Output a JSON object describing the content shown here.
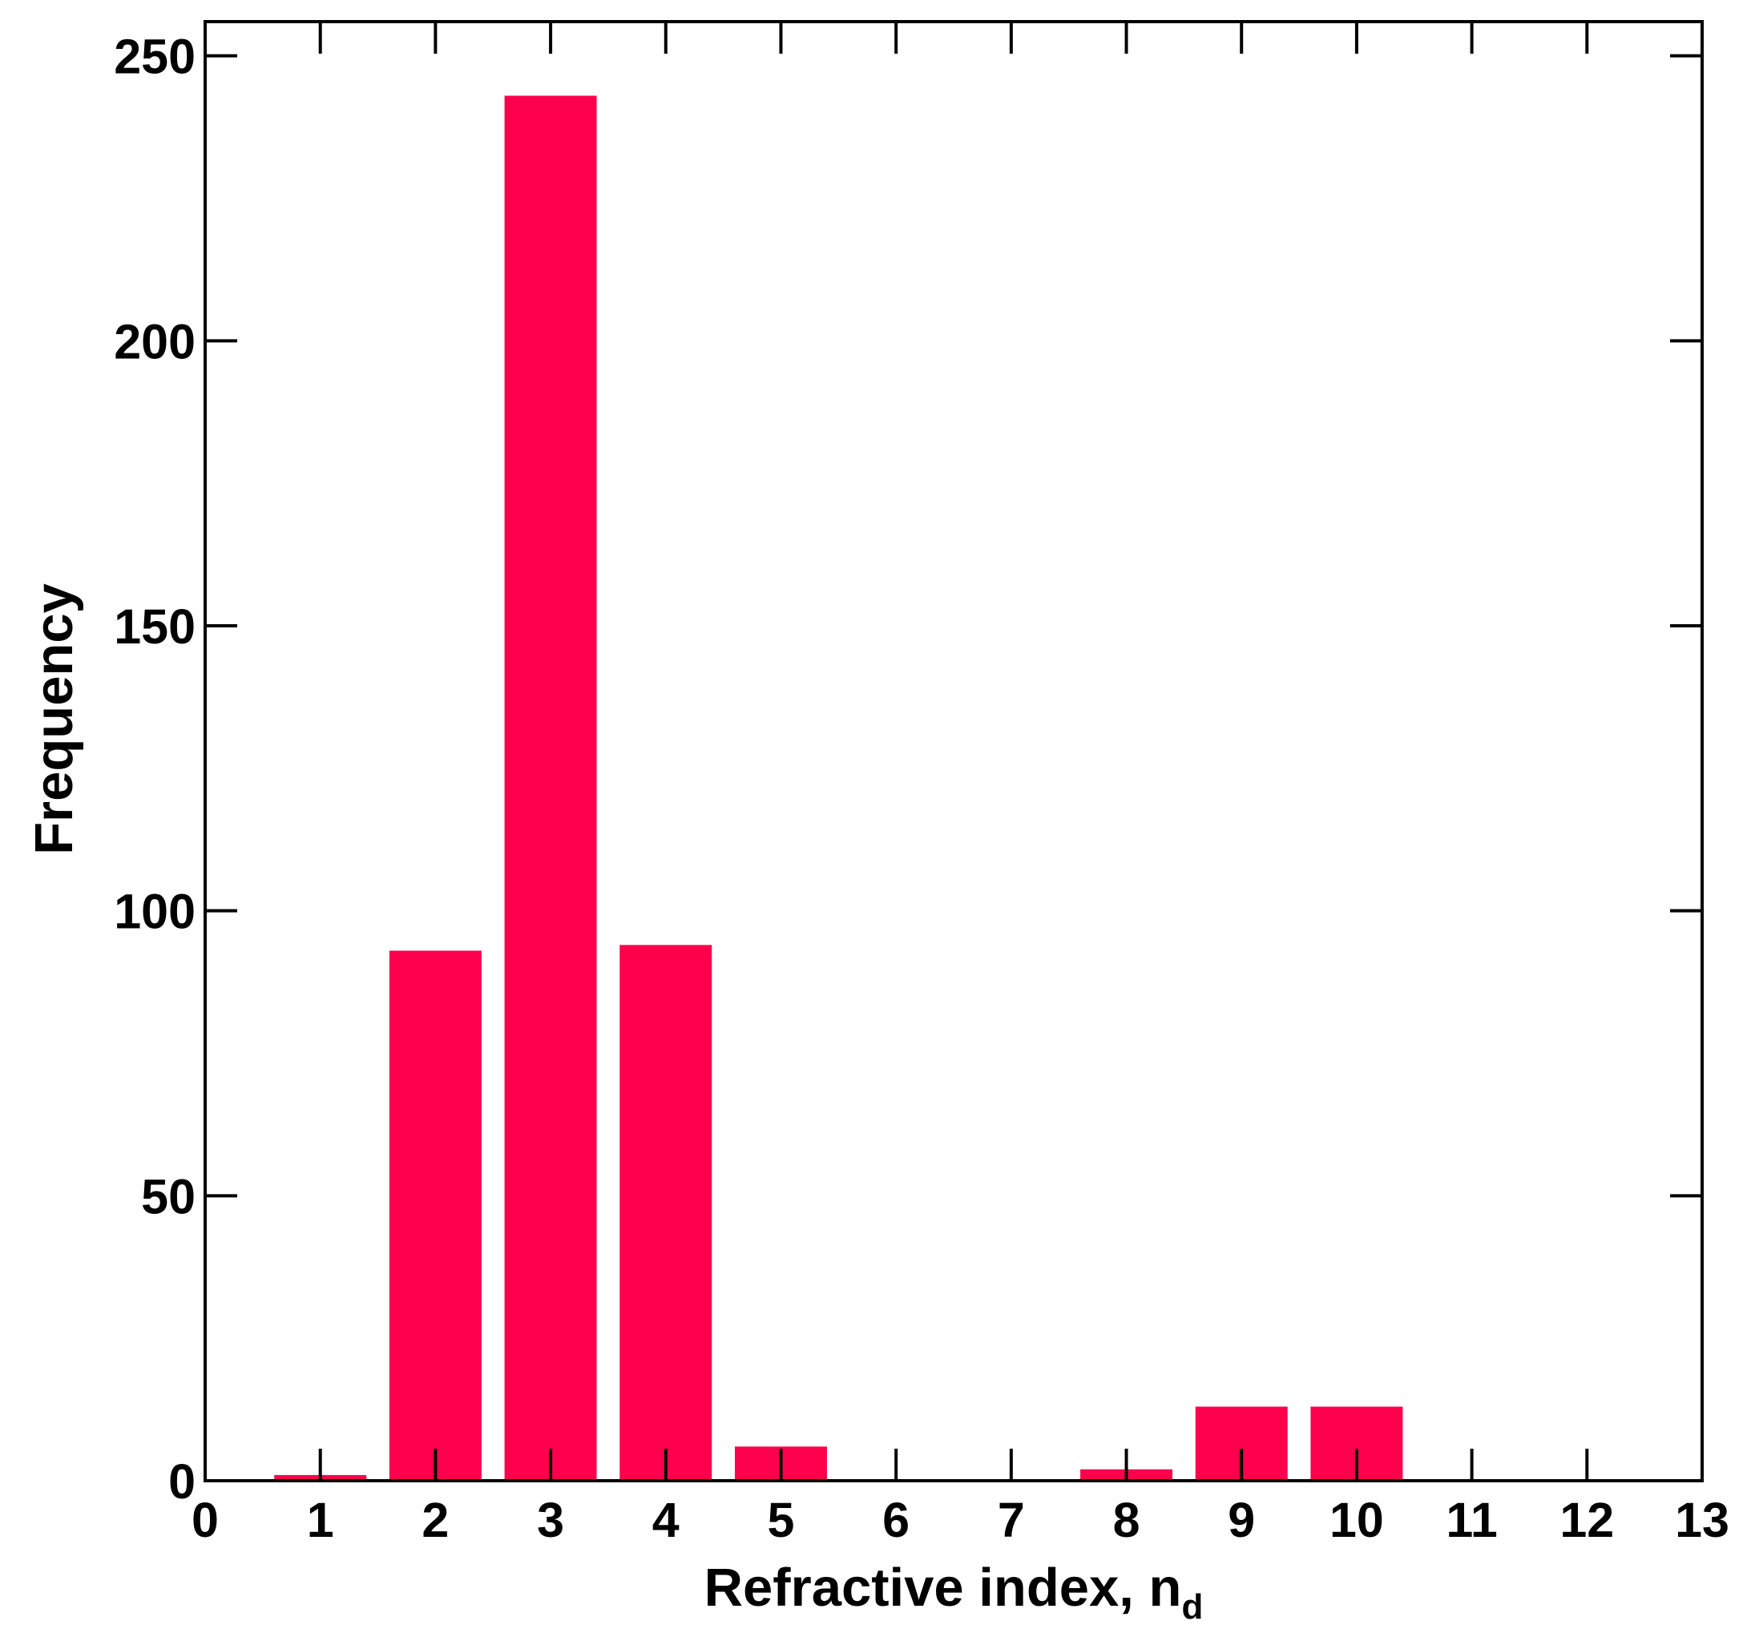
{
  "chart_data": {
    "type": "bar",
    "title": "",
    "xlabel": "Refractive index, n",
    "xlabel_subscript": "d",
    "ylabel": "Frequency",
    "xlim": [
      0,
      13
    ],
    "ylim": [
      0,
      256
    ],
    "x_ticks": [
      "0",
      "1",
      "2",
      "3",
      "4",
      "5",
      "6",
      "7",
      "8",
      "9",
      "10",
      "11",
      "12",
      "13"
    ],
    "y_ticks": [
      "0",
      "50",
      "100",
      "150",
      "200",
      "250"
    ],
    "categories": [
      1,
      2,
      3,
      4,
      5,
      8,
      9,
      10
    ],
    "values": [
      1,
      93,
      243,
      94,
      6,
      2,
      13,
      13
    ],
    "bar_color": "#ff004d",
    "grid": false,
    "legend": "none"
  }
}
